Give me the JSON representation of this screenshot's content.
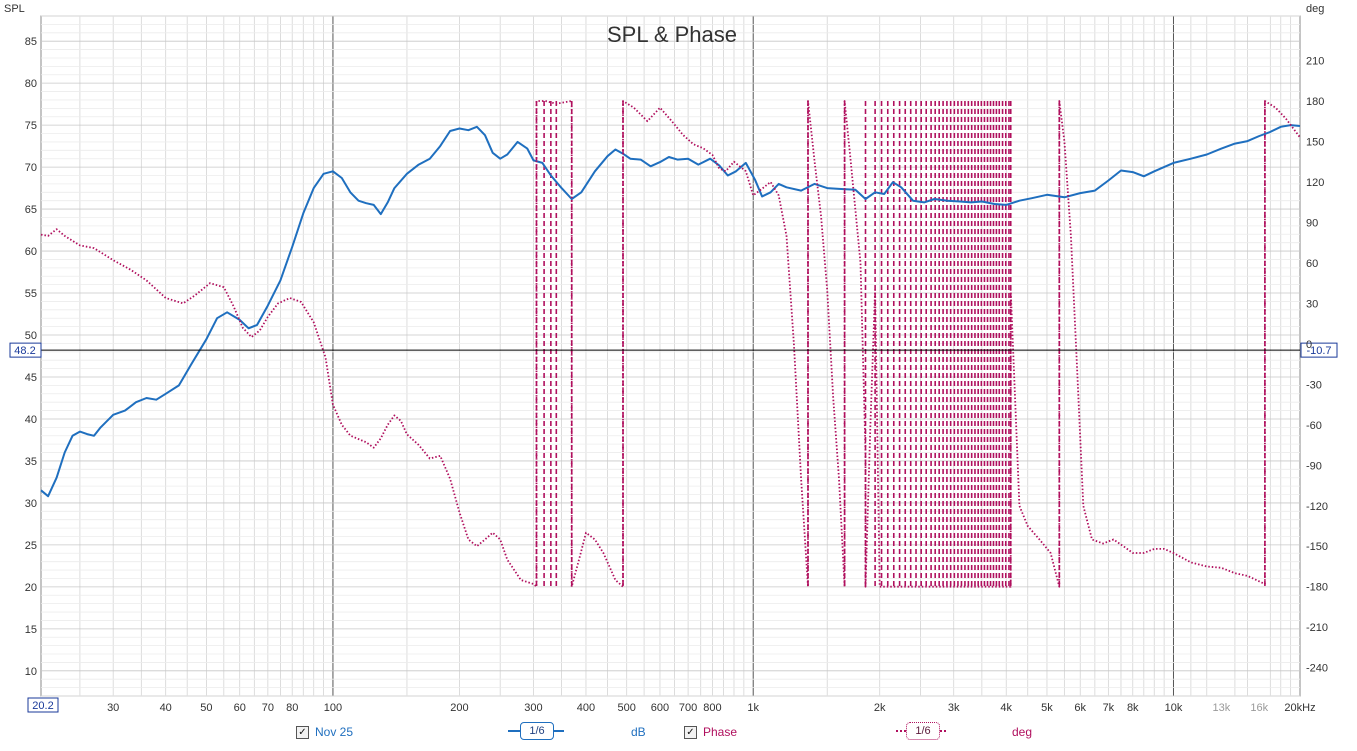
{
  "chart_data": {
    "type": "line",
    "title": "SPL & Phase",
    "left_axis": {
      "label": "SPL",
      "ylim": [
        7,
        88
      ],
      "ticks": [
        10,
        15,
        20,
        25,
        30,
        35,
        40,
        45,
        50,
        55,
        60,
        65,
        70,
        75,
        80,
        85
      ]
    },
    "right_axis": {
      "label": "deg",
      "ylim": [
        -261,
        243
      ],
      "ticks": [
        -240,
        -210,
        -180,
        -150,
        -120,
        -90,
        -60,
        -30,
        0,
        30,
        60,
        90,
        120,
        150,
        180,
        210
      ]
    },
    "x_axis": {
      "scale": "log",
      "xlim": [
        20.2,
        20000
      ],
      "ticks": [
        {
          "v": 30,
          "label": "30"
        },
        {
          "v": 40,
          "label": "40"
        },
        {
          "v": 50,
          "label": "50"
        },
        {
          "v": 60,
          "label": "60"
        },
        {
          "v": 70,
          "label": "70"
        },
        {
          "v": 80,
          "label": "80"
        },
        {
          "v": 100,
          "label": "100"
        },
        {
          "v": 200,
          "label": "200"
        },
        {
          "v": 300,
          "label": "300"
        },
        {
          "v": 400,
          "label": "400"
        },
        {
          "v": 500,
          "label": "500"
        },
        {
          "v": 600,
          "label": "600"
        },
        {
          "v": 700,
          "label": "700"
        },
        {
          "v": 800,
          "label": "800"
        },
        {
          "v": 1000,
          "label": "1k"
        },
        {
          "v": 2000,
          "label": "2k"
        },
        {
          "v": 3000,
          "label": "3k"
        },
        {
          "v": 4000,
          "label": "4k"
        },
        {
          "v": 5000,
          "label": "5k"
        },
        {
          "v": 6000,
          "label": "6k"
        },
        {
          "v": 7000,
          "label": "7k"
        },
        {
          "v": 8000,
          "label": "8k"
        },
        {
          "v": 10000,
          "label": "10k"
        },
        {
          "v": 13000,
          "label": "13k",
          "dim": true
        },
        {
          "v": 16000,
          "label": "16k",
          "dim": true
        },
        {
          "v": 20000,
          "label": "20kHz"
        }
      ]
    },
    "cursor": {
      "x_label": "20.2",
      "y_left_value": 48.2,
      "y_left_label": "48.2",
      "y_right_label": "-10.7"
    },
    "series": [
      {
        "name": "Nov 25",
        "unit": "dB",
        "axis": "left",
        "color": "#1f6fbf",
        "points": [
          [
            20.2,
            31.5
          ],
          [
            21,
            30.8
          ],
          [
            22,
            33
          ],
          [
            23,
            36
          ],
          [
            24,
            38
          ],
          [
            25,
            38.5
          ],
          [
            26,
            38.2
          ],
          [
            27,
            38
          ],
          [
            28,
            39
          ],
          [
            30,
            40.5
          ],
          [
            32,
            41
          ],
          [
            34,
            42
          ],
          [
            36,
            42.5
          ],
          [
            38,
            42.3
          ],
          [
            40,
            43
          ],
          [
            43,
            44
          ],
          [
            46,
            46.5
          ],
          [
            50,
            49.5
          ],
          [
            53,
            52
          ],
          [
            56,
            52.7
          ],
          [
            60,
            51.8
          ],
          [
            63,
            50.8
          ],
          [
            66,
            51.2
          ],
          [
            70,
            53.5
          ],
          [
            75,
            56.5
          ],
          [
            80,
            60.5
          ],
          [
            85,
            64.5
          ],
          [
            90,
            67.5
          ],
          [
            95,
            69.2
          ],
          [
            100,
            69.5
          ],
          [
            105,
            68.7
          ],
          [
            110,
            67
          ],
          [
            115,
            66
          ],
          [
            120,
            65.7
          ],
          [
            125,
            65.5
          ],
          [
            130,
            64.4
          ],
          [
            135,
            65.8
          ],
          [
            140,
            67.5
          ],
          [
            150,
            69.2
          ],
          [
            160,
            70.3
          ],
          [
            170,
            71
          ],
          [
            180,
            72.5
          ],
          [
            190,
            74.3
          ],
          [
            200,
            74.6
          ],
          [
            210,
            74.4
          ],
          [
            220,
            74.8
          ],
          [
            230,
            73.8
          ],
          [
            240,
            71.7
          ],
          [
            250,
            71
          ],
          [
            260,
            71.5
          ],
          [
            275,
            73
          ],
          [
            290,
            72.2
          ],
          [
            300,
            70.8
          ],
          [
            315,
            70.5
          ],
          [
            330,
            69
          ],
          [
            350,
            67.5
          ],
          [
            370,
            66.2
          ],
          [
            390,
            67
          ],
          [
            420,
            69.5
          ],
          [
            450,
            71.3
          ],
          [
            470,
            72.1
          ],
          [
            490,
            71.6
          ],
          [
            510,
            71
          ],
          [
            540,
            70.9
          ],
          [
            570,
            70.1
          ],
          [
            600,
            70.6
          ],
          [
            630,
            71.2
          ],
          [
            660,
            70.9
          ],
          [
            700,
            71
          ],
          [
            740,
            70.3
          ],
          [
            790,
            71
          ],
          [
            830,
            70.2
          ],
          [
            870,
            69
          ],
          [
            910,
            69.5
          ],
          [
            960,
            70.5
          ],
          [
            1010,
            68.5
          ],
          [
            1050,
            66.5
          ],
          [
            1100,
            67
          ],
          [
            1150,
            68
          ],
          [
            1200,
            67.6
          ],
          [
            1300,
            67.2
          ],
          [
            1400,
            68
          ],
          [
            1500,
            67.5
          ],
          [
            1600,
            67.4
          ],
          [
            1750,
            67.3
          ],
          [
            1850,
            66.2
          ],
          [
            1950,
            67
          ],
          [
            2050,
            66.8
          ],
          [
            2150,
            68.2
          ],
          [
            2250,
            67.6
          ],
          [
            2400,
            66
          ],
          [
            2550,
            65.8
          ],
          [
            2700,
            66.2
          ],
          [
            2900,
            66
          ],
          [
            3100,
            65.9
          ],
          [
            3300,
            65.8
          ],
          [
            3500,
            65.9
          ],
          [
            3750,
            65.6
          ],
          [
            4000,
            65.5
          ],
          [
            4300,
            66
          ],
          [
            4600,
            66.3
          ],
          [
            5000,
            66.7
          ],
          [
            5500,
            66.4
          ],
          [
            6000,
            66.9
          ],
          [
            6500,
            67.2
          ],
          [
            7000,
            68.4
          ],
          [
            7500,
            69.6
          ],
          [
            8000,
            69.4
          ],
          [
            8500,
            68.9
          ],
          [
            9000,
            69.5
          ],
          [
            10000,
            70.5
          ],
          [
            11000,
            71
          ],
          [
            12000,
            71.5
          ],
          [
            13000,
            72.2
          ],
          [
            14000,
            72.8
          ],
          [
            15000,
            73.1
          ],
          [
            16000,
            73.7
          ],
          [
            17000,
            74.2
          ],
          [
            18000,
            74.8
          ],
          [
            19000,
            75
          ],
          [
            20000,
            74.9
          ]
        ]
      },
      {
        "name": "Phase",
        "unit": "deg",
        "axis": "right",
        "color": "#b0105e",
        "points": [
          [
            20.2,
            81
          ],
          [
            21,
            80
          ],
          [
            22,
            85
          ],
          [
            23,
            80
          ],
          [
            25,
            73
          ],
          [
            27,
            71
          ],
          [
            30,
            62
          ],
          [
            33,
            55
          ],
          [
            36,
            47
          ],
          [
            40,
            34
          ],
          [
            44,
            30
          ],
          [
            47,
            36
          ],
          [
            51,
            45
          ],
          [
            55,
            42
          ],
          [
            58,
            28
          ],
          [
            61,
            12
          ],
          [
            64,
            5
          ],
          [
            67,
            10
          ],
          [
            70,
            20
          ],
          [
            74,
            30
          ],
          [
            79,
            34
          ],
          [
            84,
            31
          ],
          [
            90,
            16
          ],
          [
            96,
            -10
          ],
          [
            100,
            -45
          ],
          [
            105,
            -60
          ],
          [
            110,
            -68
          ],
          [
            120,
            -73
          ],
          [
            125,
            -77
          ],
          [
            130,
            -70
          ],
          [
            135,
            -60
          ],
          [
            140,
            -53
          ],
          [
            145,
            -57
          ],
          [
            150,
            -67
          ],
          [
            160,
            -75
          ],
          [
            170,
            -85
          ],
          [
            180,
            -83
          ],
          [
            190,
            -100
          ],
          [
            200,
            -125
          ],
          [
            210,
            -145
          ],
          [
            220,
            -150
          ],
          [
            230,
            -145
          ],
          [
            240,
            -140
          ],
          [
            250,
            -145
          ],
          [
            260,
            -160
          ],
          [
            280,
            -175
          ],
          [
            300,
            -178
          ],
          [
            305,
            -180
          ],
          [
            305,
            180
          ],
          [
            320,
            180
          ],
          [
            340,
            178
          ],
          [
            370,
            180
          ],
          [
            370,
            -180
          ],
          [
            385,
            -160
          ],
          [
            400,
            -140
          ],
          [
            420,
            -145
          ],
          [
            440,
            -155
          ],
          [
            470,
            -175
          ],
          [
            490,
            -180
          ],
          [
            490,
            180
          ],
          [
            520,
            175
          ],
          [
            560,
            165
          ],
          [
            600,
            175
          ],
          [
            640,
            165
          ],
          [
            680,
            155
          ],
          [
            720,
            148
          ],
          [
            760,
            145
          ],
          [
            800,
            140
          ],
          [
            830,
            130
          ],
          [
            860,
            128
          ],
          [
            900,
            135
          ],
          [
            960,
            128
          ],
          [
            1000,
            110
          ],
          [
            1050,
            115
          ],
          [
            1100,
            120
          ],
          [
            1150,
            110
          ],
          [
            1200,
            80
          ],
          [
            1250,
            0
          ],
          [
            1300,
            -100
          ],
          [
            1350,
            -180
          ],
          [
            1350,
            180
          ],
          [
            1400,
            135
          ],
          [
            1450,
            95
          ],
          [
            1500,
            40
          ],
          [
            1550,
            -40
          ],
          [
            1600,
            -100
          ],
          [
            1650,
            -180
          ],
          [
            1650,
            180
          ],
          [
            1700,
            140
          ],
          [
            1800,
            60
          ],
          [
            1850,
            -80
          ],
          [
            1850,
            -180
          ],
          [
            1900,
            -60
          ],
          [
            1950,
            40
          ],
          [
            2000,
            -180
          ],
          [
            2300,
            -180
          ],
          [
            2600,
            -180
          ],
          [
            3000,
            -180
          ],
          [
            3600,
            -180
          ],
          [
            4100,
            -180
          ],
          [
            4100,
            40
          ],
          [
            4300,
            -120
          ],
          [
            4500,
            -135
          ],
          [
            4800,
            -145
          ],
          [
            5100,
            -155
          ],
          [
            5350,
            -180
          ],
          [
            5350,
            180
          ],
          [
            5500,
            150
          ],
          [
            5700,
            80
          ],
          [
            5900,
            -20
          ],
          [
            6100,
            -120
          ],
          [
            6400,
            -145
          ],
          [
            6800,
            -148
          ],
          [
            7200,
            -145
          ],
          [
            7600,
            -150
          ],
          [
            8000,
            -155
          ],
          [
            8500,
            -155
          ],
          [
            9000,
            -152
          ],
          [
            9500,
            -152
          ],
          [
            10000,
            -155
          ],
          [
            11000,
            -162
          ],
          [
            12000,
            -165
          ],
          [
            13000,
            -166
          ],
          [
            14000,
            -170
          ],
          [
            15000,
            -172
          ],
          [
            16500,
            -178
          ],
          [
            16500,
            180
          ],
          [
            17500,
            175
          ],
          [
            18500,
            167
          ],
          [
            20000,
            153
          ]
        ]
      }
    ],
    "wrap_lines_hz": [
      305,
      318,
      330,
      340,
      370,
      490,
      1350,
      1650,
      1850,
      1950,
      2020,
      2090,
      2160,
      2230,
      2300,
      2370,
      2440,
      2510,
      2580,
      2650,
      2710,
      2770,
      2830,
      2890,
      2950,
      3010,
      3070,
      3130,
      3190,
      3250,
      3310,
      3370,
      3430,
      3490,
      3550,
      3610,
      3670,
      3730,
      3790,
      3850,
      3920,
      3990,
      4060,
      4100,
      5350,
      16500
    ]
  },
  "legend": {
    "series1_name": "Nov 25",
    "series1_unit": "dB",
    "series1_smoothing": "1/6",
    "series2_name": "Phase",
    "series2_unit": "deg",
    "series2_smoothing": "1/6",
    "checkmark": "✓"
  }
}
